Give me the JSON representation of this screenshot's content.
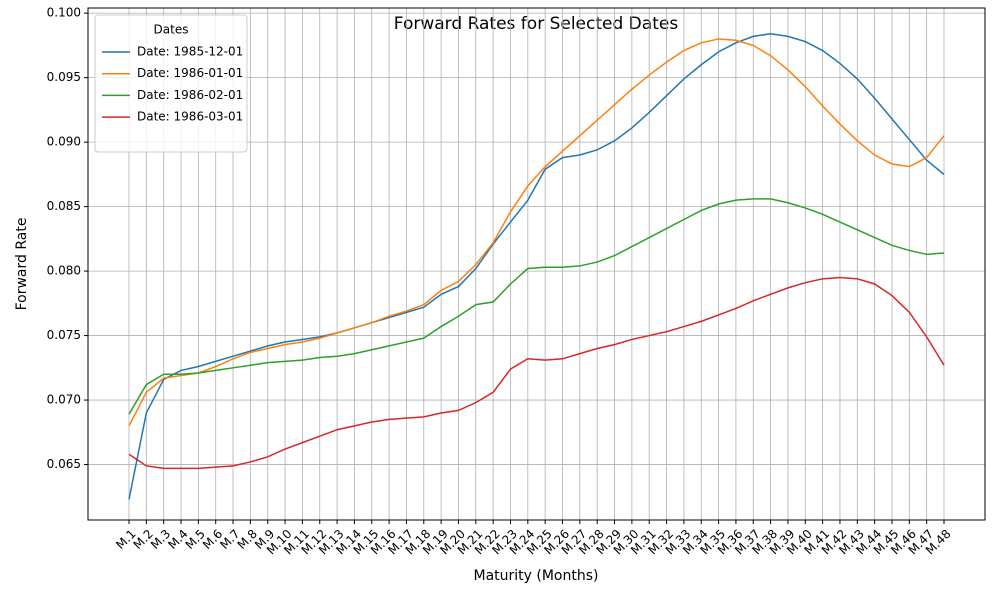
{
  "chart_data": {
    "type": "line",
    "title": "Forward Rates for Selected Dates",
    "x_label": "Maturity (Months)",
    "y_label": "Forward Rate",
    "categories": [
      "M.1",
      "M.2",
      "M.3",
      "M.4",
      "M.5",
      "M.6",
      "M.7",
      "M.8",
      "M.9",
      "M.10",
      "M.11",
      "M.12",
      "M.13",
      "M.14",
      "M.15",
      "M.16",
      "M.17",
      "M.18",
      "M.19",
      "M.20",
      "M.21",
      "M.22",
      "M.23",
      "M.24",
      "M.25",
      "M.26",
      "M.27",
      "M.28",
      "M.29",
      "M.30",
      "M.31",
      "M.32",
      "M.33",
      "M.34",
      "M.35",
      "M.36",
      "M.37",
      "M.38",
      "M.39",
      "M.40",
      "M.41",
      "M.42",
      "M.43",
      "M.44",
      "M.45",
      "M.46",
      "M.47",
      "M.48"
    ],
    "series": [
      {
        "name": "Date: 1985-12-01",
        "color": "#1f77b4",
        "values": [
          0.0623,
          0.069,
          0.0716,
          0.0723,
          0.0726,
          0.073,
          0.0734,
          0.0738,
          0.0742,
          0.0745,
          0.0747,
          0.0749,
          0.0752,
          0.0756,
          0.076,
          0.0764,
          0.0768,
          0.0772,
          0.0782,
          0.0788,
          0.0802,
          0.0821,
          0.0838,
          0.0855,
          0.0879,
          0.0888,
          0.089,
          0.0894,
          0.0901,
          0.0911,
          0.0923,
          0.0936,
          0.0949,
          0.096,
          0.097,
          0.0977,
          0.0982,
          0.0984,
          0.0982,
          0.0978,
          0.0971,
          0.0961,
          0.0949,
          0.0934,
          0.0918,
          0.0902,
          0.0886,
          0.0875
        ]
      },
      {
        "name": "Date: 1986-01-01",
        "color": "#ff7f0e",
        "values": [
          0.068,
          0.0706,
          0.0717,
          0.0719,
          0.0721,
          0.0726,
          0.0732,
          0.0737,
          0.074,
          0.0743,
          0.0745,
          0.0748,
          0.0752,
          0.0756,
          0.076,
          0.0765,
          0.0769,
          0.0774,
          0.0785,
          0.0792,
          0.0805,
          0.0822,
          0.0846,
          0.0866,
          0.0881,
          0.0893,
          0.0905,
          0.0917,
          0.0929,
          0.0941,
          0.0952,
          0.0962,
          0.0971,
          0.0977,
          0.098,
          0.0979,
          0.0975,
          0.0967,
          0.0956,
          0.0943,
          0.0928,
          0.0914,
          0.0901,
          0.089,
          0.0883,
          0.0881,
          0.0888,
          0.0905
        ]
      },
      {
        "name": "Date: 1986-02-01",
        "color": "#2ca02c",
        "values": [
          0.0689,
          0.0712,
          0.072,
          0.072,
          0.0721,
          0.0723,
          0.0725,
          0.0727,
          0.0729,
          0.073,
          0.0731,
          0.0733,
          0.0734,
          0.0736,
          0.0739,
          0.0742,
          0.0745,
          0.0748,
          0.0757,
          0.0765,
          0.0774,
          0.0776,
          0.079,
          0.0802,
          0.0803,
          0.0803,
          0.0804,
          0.0807,
          0.0812,
          0.0819,
          0.0826,
          0.0833,
          0.084,
          0.0847,
          0.0852,
          0.0855,
          0.0856,
          0.0856,
          0.0853,
          0.0849,
          0.0844,
          0.0838,
          0.0832,
          0.0826,
          0.082,
          0.0816,
          0.0813,
          0.0814
        ]
      },
      {
        "name": "Date: 1986-03-01",
        "color": "#d62728",
        "values": [
          0.0658,
          0.0649,
          0.0647,
          0.0647,
          0.0647,
          0.0648,
          0.0649,
          0.0652,
          0.0656,
          0.0662,
          0.0667,
          0.0672,
          0.0677,
          0.068,
          0.0683,
          0.0685,
          0.0686,
          0.0687,
          0.069,
          0.0692,
          0.0698,
          0.0706,
          0.0724,
          0.0732,
          0.0731,
          0.0732,
          0.0736,
          0.074,
          0.0743,
          0.0747,
          0.075,
          0.0753,
          0.0757,
          0.0761,
          0.0766,
          0.0771,
          0.0777,
          0.0782,
          0.0787,
          0.0791,
          0.0794,
          0.0795,
          0.0794,
          0.079,
          0.0781,
          0.0768,
          0.0749,
          0.0727
        ]
      }
    ],
    "legend_title": "Dates",
    "legend_position": "upper left",
    "grid": true,
    "ylim": [
      0.0607,
      0.1004
    ],
    "yticks": [
      0.065,
      {
        "value": 0.07,
        "label": "0.070"
      },
      0.075,
      {
        "value": 0.08,
        "label": "0.080"
      },
      0.085,
      {
        "value": 0.09,
        "label": "0.090"
      },
      0.095,
      {
        "value": 0.1,
        "label": "0.100"
      }
    ]
  }
}
